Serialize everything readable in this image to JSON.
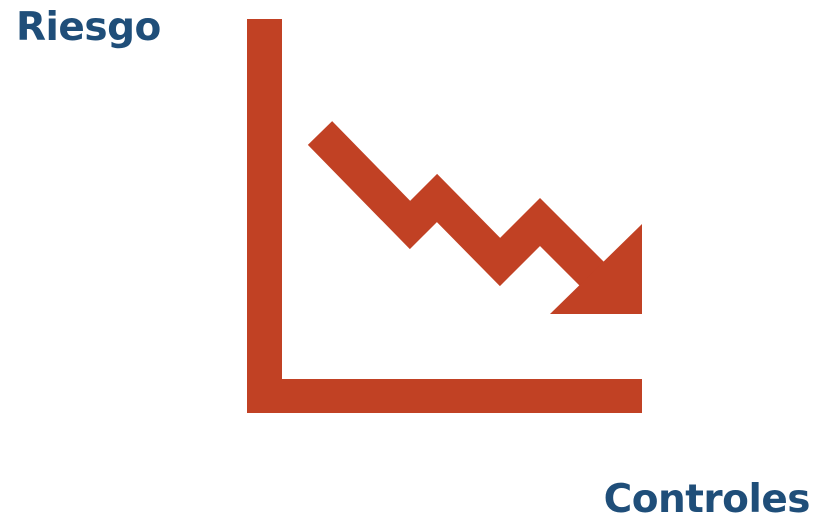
{
  "diagram": {
    "y_axis_label": "Riesgo",
    "x_axis_label": "Controles",
    "trend": "decreasing",
    "icon": "downward-trend-chart-icon"
  },
  "colors": {
    "label": "#1f4e79",
    "graphic": "#c14124",
    "background": "#ffffff"
  }
}
